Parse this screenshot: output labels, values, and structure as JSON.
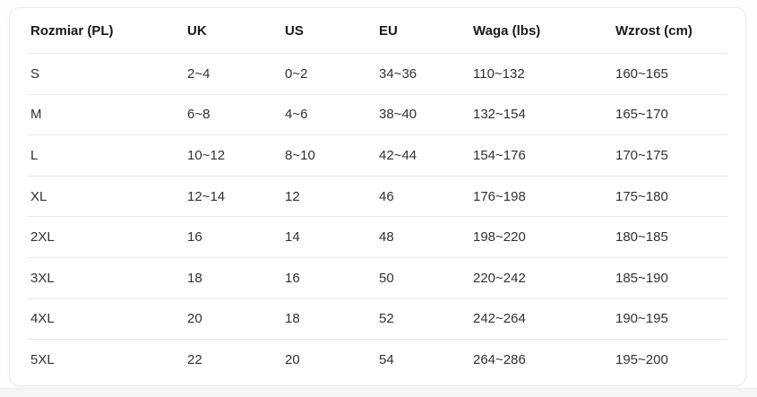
{
  "table": {
    "columns": [
      "Rozmiar (PL)",
      "UK",
      "US",
      "EU",
      "Waga (lbs)",
      "Wzrost (cm)"
    ],
    "rows": [
      [
        "S",
        "2~4",
        "0~2",
        "34~36",
        "110~132",
        "160~165"
      ],
      [
        "M",
        "6~8",
        "4~6",
        "38~40",
        "132~154",
        "165~170"
      ],
      [
        "L",
        "10~12",
        "8~10",
        "42~44",
        "154~176",
        "170~175"
      ],
      [
        "XL",
        "12~14",
        "12",
        "46",
        "176~198",
        "175~180"
      ],
      [
        "2XL",
        "16",
        "14",
        "48",
        "198~220",
        "180~185"
      ],
      [
        "3XL",
        "18",
        "16",
        "50",
        "220~242",
        "185~190"
      ],
      [
        "4XL",
        "20",
        "18",
        "52",
        "242~264",
        "190~195"
      ],
      [
        "5XL",
        "22",
        "20",
        "54",
        "264~286",
        "195~200"
      ]
    ]
  },
  "colors": {
    "card_background": "#ffffff",
    "card_border": "#ececee",
    "divider": "#e8e8ea",
    "header_text": "#17181c",
    "cell_text": "#2f3136",
    "page_strip": "#f5f5f6"
  }
}
